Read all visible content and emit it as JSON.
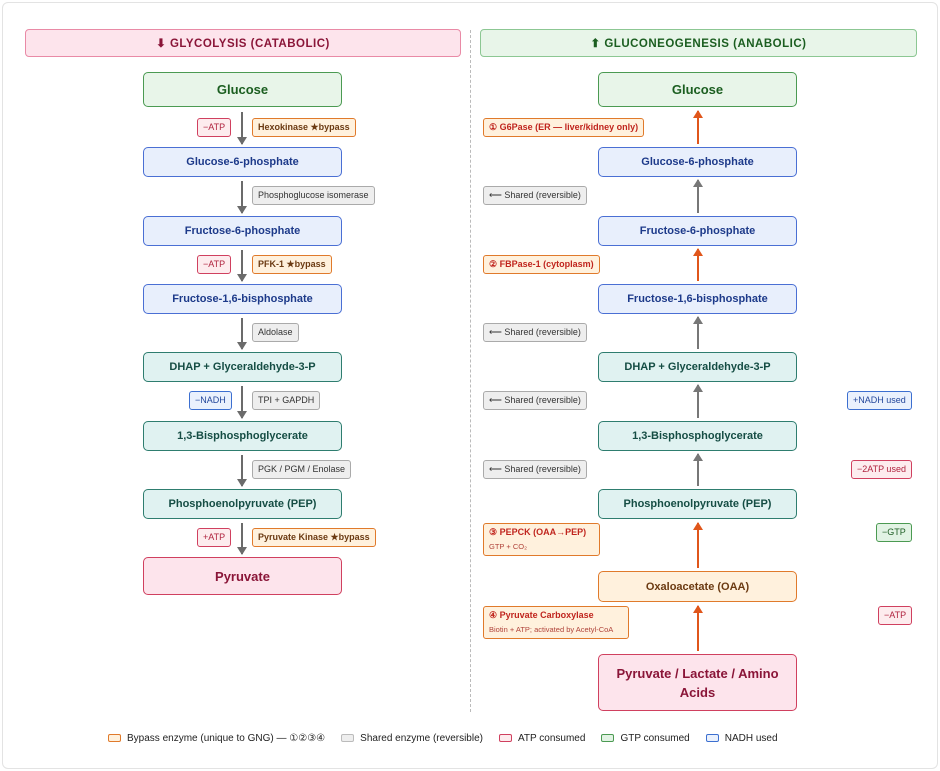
{
  "headers": {
    "left": "⬇ GLYCOLYSIS (CATABOLIC)",
    "right": "⬆ GLUCONEOGENESIS (ANABOLIC)"
  },
  "glycolysis": {
    "nodes": [
      "Glucose",
      "Glucose-6-phosphate",
      "Fructose-6-phosphate",
      "Fructose-1,6-bisphosphate",
      "DHAP + Glyceraldehyde-3-P",
      "1,3-Bisphosphoglycerate",
      "Phosphoenolpyruvate (PEP)",
      "Pyruvate"
    ],
    "steps": [
      {
        "cost": "−ATP",
        "enzyme": "Hexokinase ★bypass"
      },
      {
        "enzyme": "Phosphoglucose isomerase"
      },
      {
        "cost": "−ATP",
        "enzyme": "PFK-1 ★bypass"
      },
      {
        "enzyme": "Aldolase"
      },
      {
        "cost": "−NADH",
        "enzyme": "TPI + GAPDH"
      },
      {
        "enzyme": "PGK / PGM / Enolase"
      },
      {
        "cost": "+ATP",
        "enzyme": "Pyruvate Kinase ★bypass"
      }
    ]
  },
  "gluconeogenesis": {
    "nodes": [
      "Glucose",
      "Glucose-6-phosphate",
      "Fructose-6-phosphate",
      "Fructose-1,6-bisphosphate",
      "DHAP + Glyceraldehyde-3-P",
      "1,3-Bisphosphoglycerate",
      "Phosphoenolpyruvate (PEP)",
      "Oxaloacetate (OAA)",
      "Pyruvate / Lactate / Amino Acids"
    ],
    "steps": [
      {
        "enzyme": "① G6Pase (ER — liver/kidney only)"
      },
      {
        "enzyme": "⟵ Shared (reversible)"
      },
      {
        "enzyme": "② FBPase-1 (cytoplasm)"
      },
      {
        "enzyme": "⟵ Shared (reversible)"
      },
      {
        "enzyme": "⟵ Shared (reversible)",
        "cost": "+NADH used"
      },
      {
        "enzyme": "⟵ Shared (reversible)",
        "cost": "−2ATP used"
      },
      {
        "enzyme": "③ PEPCK (OAA→PEP)",
        "note": "GTP + CO₂",
        "cost": "−GTP"
      },
      {
        "enzyme": "④ Pyruvate Carboxylase",
        "note": "Biotin + ATP; activated by Acetyl-CoA",
        "cost": "−ATP"
      }
    ]
  },
  "legend": [
    "Bypass enzyme (unique to GNG) — ①②③④",
    "Shared enzyme (reversible)",
    "ATP consumed",
    "GTP consumed",
    "NADH used"
  ],
  "colors": {
    "bypass": "#e07a2b",
    "shared": "#aaaaaa",
    "atp": "#d0405f",
    "gtp": "#4b9a52",
    "nadh": "#3c6fd0",
    "arrow_shared": "#6b6b6b",
    "arrow_bypass": "#e0561b"
  }
}
